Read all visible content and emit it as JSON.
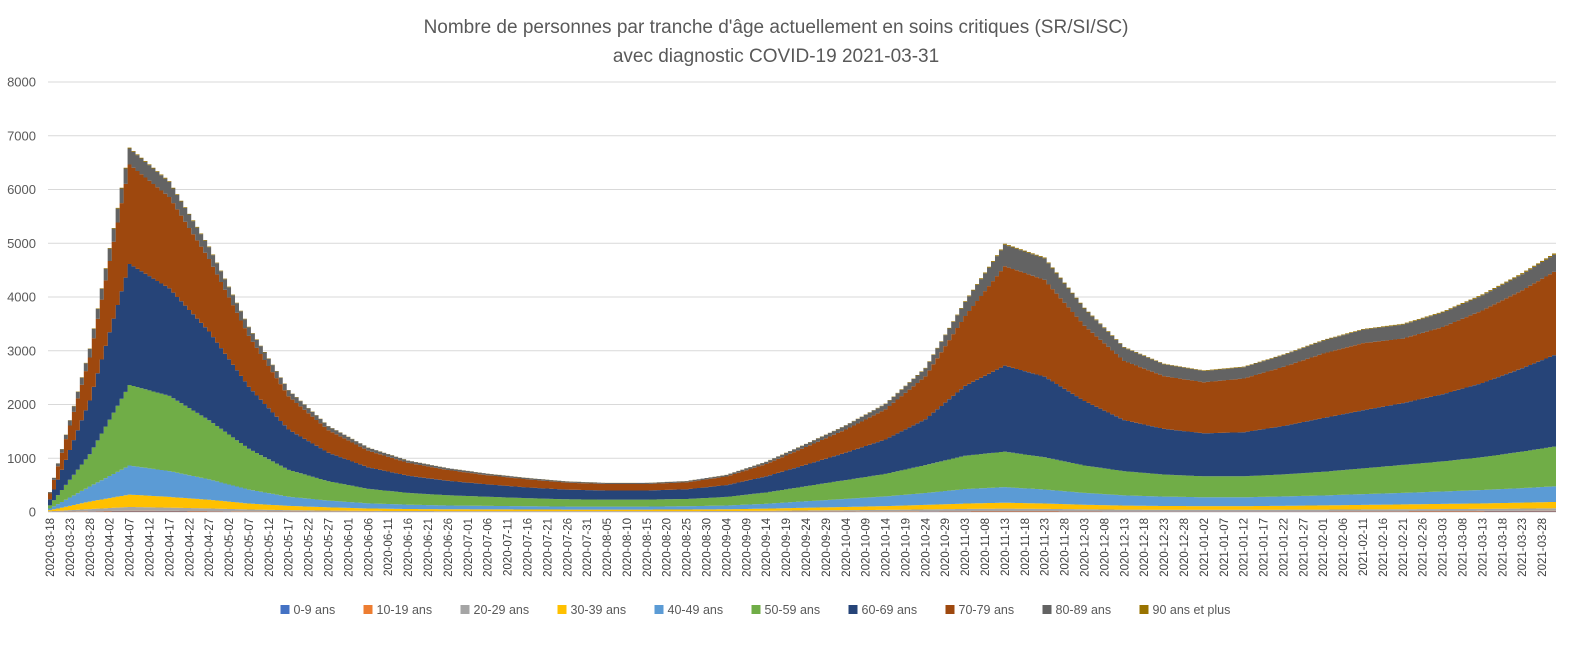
{
  "chart_data": {
    "type": "area",
    "stacked": true,
    "title": "Nombre de personnes par tranche d'âge actuellement en soins critiques (SR/SI/SC)",
    "subtitle": "avec diagnostic COVID-19 2021-03-31",
    "ylim": [
      0,
      8000
    ],
    "yticks": [
      0,
      1000,
      2000,
      3000,
      4000,
      5000,
      6000,
      7000,
      8000
    ],
    "grid": true,
    "legend_position": "bottom",
    "x_start": "2020-03-18",
    "x_end": "2021-03-31",
    "x_tick_interval_days": 5,
    "x": [
      "2020-03-18",
      "2020-03-28",
      "2020-04-07",
      "2020-04-17",
      "2020-04-27",
      "2020-05-07",
      "2020-05-17",
      "2020-05-27",
      "2020-06-06",
      "2020-06-16",
      "2020-06-26",
      "2020-07-06",
      "2020-07-16",
      "2020-07-26",
      "2020-08-05",
      "2020-08-15",
      "2020-08-25",
      "2020-09-04",
      "2020-09-14",
      "2020-09-24",
      "2020-10-04",
      "2020-10-14",
      "2020-10-24",
      "2020-11-03",
      "2020-11-13",
      "2020-11-23",
      "2020-12-03",
      "2020-12-13",
      "2020-12-23",
      "2021-01-02",
      "2021-01-12",
      "2021-01-22",
      "2021-02-01",
      "2021-02-11",
      "2021-02-21",
      "2021-03-03",
      "2021-03-13",
      "2021-03-23",
      "2021-03-31"
    ],
    "series": [
      {
        "name": "0-9 ans",
        "color": "#4472c4",
        "values": [
          2,
          6,
          10,
          9,
          7,
          5,
          4,
          3,
          3,
          2,
          2,
          2,
          2,
          2,
          2,
          2,
          2,
          2,
          3,
          4,
          4,
          5,
          6,
          7,
          8,
          8,
          7,
          6,
          6,
          6,
          6,
          6,
          6,
          6,
          7,
          8,
          8,
          9,
          9
        ]
      },
      {
        "name": "10-19 ans",
        "color": "#ed7d31",
        "values": [
          2,
          8,
          14,
          12,
          10,
          7,
          5,
          4,
          3,
          3,
          3,
          3,
          3,
          3,
          3,
          3,
          3,
          3,
          4,
          5,
          6,
          7,
          8,
          10,
          11,
          10,
          9,
          8,
          8,
          8,
          8,
          9,
          9,
          10,
          10,
          11,
          12,
          13,
          14
        ]
      },
      {
        "name": "20-29 ans",
        "color": "#a5a5a5",
        "values": [
          10,
          40,
          70,
          60,
          50,
          35,
          25,
          20,
          15,
          13,
          12,
          12,
          12,
          12,
          12,
          12,
          12,
          13,
          16,
          20,
          24,
          28,
          34,
          40,
          44,
          40,
          34,
          30,
          28,
          27,
          27,
          28,
          30,
          32,
          34,
          36,
          38,
          42,
          46
        ]
      },
      {
        "name": "30-39 ans",
        "color": "#ffc000",
        "values": [
          20,
          140,
          230,
          200,
          160,
          110,
          80,
          60,
          45,
          38,
          34,
          32,
          30,
          28,
          28,
          28,
          30,
          33,
          40,
          50,
          60,
          70,
          85,
          100,
          110,
          100,
          85,
          75,
          70,
          68,
          68,
          72,
          78,
          84,
          90,
          96,
          102,
          110,
          118
        ]
      },
      {
        "name": "40-49 ans",
        "color": "#5b9bd5",
        "values": [
          30,
          280,
          540,
          480,
          380,
          260,
          170,
          125,
          95,
          80,
          70,
          65,
          60,
          56,
          55,
          56,
          60,
          70,
          90,
          120,
          150,
          180,
          220,
          270,
          290,
          260,
          220,
          190,
          175,
          165,
          165,
          175,
          185,
          200,
          215,
          230,
          250,
          270,
          290
        ]
      },
      {
        "name": "50-59 ans",
        "color": "#70ad47",
        "values": [
          60,
          600,
          1500,
          1400,
          1100,
          760,
          500,
          360,
          270,
          220,
          190,
          170,
          150,
          135,
          130,
          130,
          135,
          160,
          210,
          280,
          350,
          420,
          520,
          620,
          660,
          600,
          510,
          450,
          410,
          390,
          390,
          410,
          440,
          480,
          520,
          560,
          610,
          680,
          740
        ]
      },
      {
        "name": "60-69 ans",
        "color": "#264478",
        "values": [
          110,
          1000,
          2250,
          2000,
          1650,
          1150,
          750,
          530,
          400,
          320,
          270,
          230,
          200,
          180,
          170,
          170,
          180,
          220,
          300,
          400,
          510,
          640,
          850,
          1300,
          1600,
          1500,
          1200,
          950,
          850,
          800,
          820,
          900,
          1000,
          1080,
          1150,
          1250,
          1380,
          1550,
          1700
        ]
      },
      {
        "name": "70-79 ans",
        "color": "#9e480e",
        "values": [
          110,
          800,
          1850,
          1700,
          1350,
          950,
          620,
          420,
          310,
          240,
          200,
          170,
          150,
          130,
          120,
          120,
          130,
          160,
          230,
          330,
          430,
          560,
          800,
          1300,
          1850,
          1800,
          1400,
          1100,
          980,
          950,
          1000,
          1100,
          1200,
          1250,
          1200,
          1250,
          1350,
          1450,
          1550
        ]
      },
      {
        "name": "80-89 ans",
        "color": "#636363",
        "values": [
          25,
          160,
          300,
          280,
          220,
          160,
          110,
          75,
          55,
          40,
          33,
          28,
          25,
          22,
          20,
          20,
          22,
          28,
          40,
          55,
          75,
          100,
          150,
          260,
          400,
          400,
          320,
          250,
          220,
          210,
          210,
          220,
          240,
          250,
          260,
          270,
          280,
          300,
          320
        ]
      },
      {
        "name": "90 ans et plus",
        "color": "#997300",
        "values": [
          2,
          8,
          15,
          14,
          12,
          9,
          6,
          4,
          3,
          3,
          2,
          2,
          2,
          2,
          2,
          2,
          2,
          2,
          3,
          4,
          5,
          7,
          9,
          13,
          18,
          18,
          14,
          11,
          10,
          10,
          10,
          11,
          12,
          13,
          14,
          16,
          18,
          20,
          22
        ]
      }
    ]
  }
}
